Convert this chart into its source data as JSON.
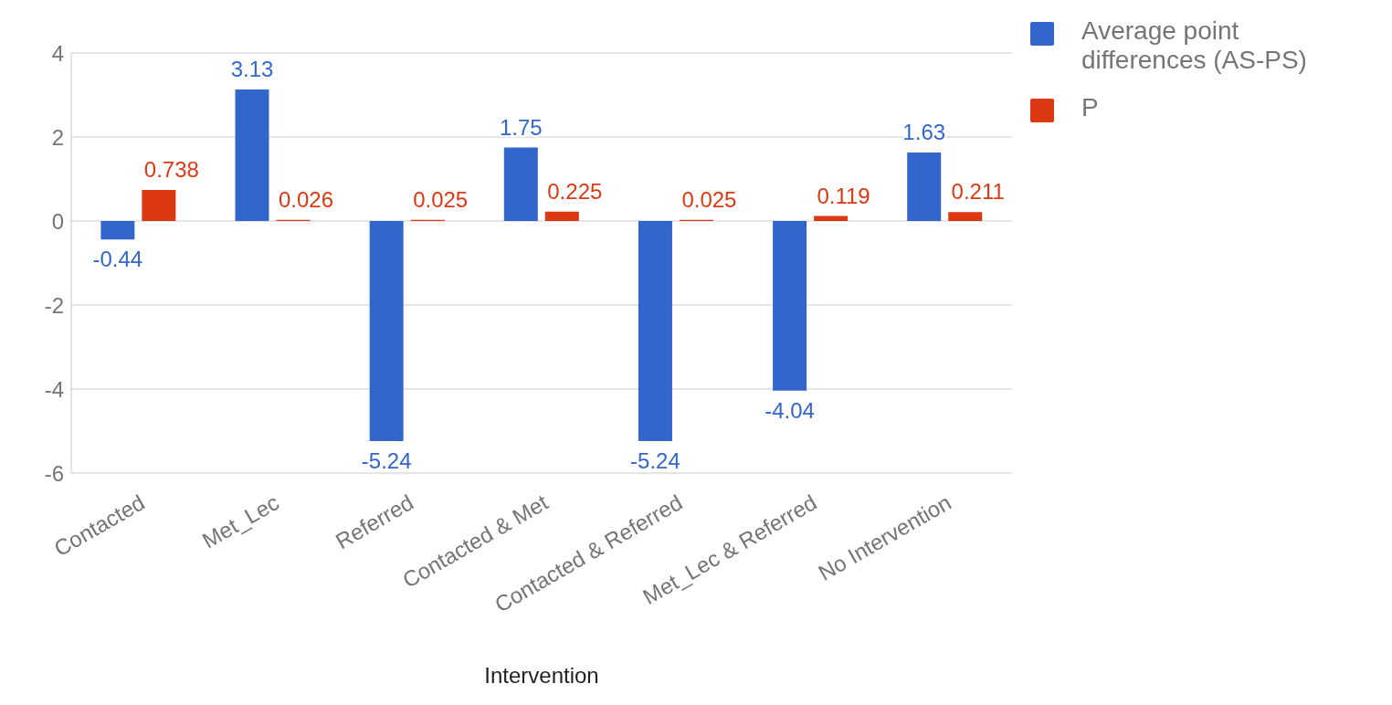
{
  "chart_data": {
    "type": "bar",
    "xlabel": "Intervention",
    "categories": [
      "Contacted",
      "Met_Lec",
      "Referred",
      "Contacted & Met",
      "Contacted & Referred",
      "Met_Lec & Referred",
      "No Intervention"
    ],
    "series": [
      {
        "name": "Average point differences (AS-PS)",
        "color": "#3366cc",
        "values": [
          -0.44,
          3.13,
          -5.24,
          1.75,
          -5.24,
          -4.04,
          1.63
        ]
      },
      {
        "name": "P",
        "color": "#dc3912",
        "values": [
          0.738,
          0.026,
          0.025,
          0.225,
          0.025,
          0.119,
          0.211
        ]
      }
    ],
    "ylim": [
      -6,
      4
    ],
    "yticks": [
      -6,
      -4,
      -2,
      0,
      2,
      4
    ],
    "grid": "y",
    "legend": "top right",
    "data_labels": true
  }
}
